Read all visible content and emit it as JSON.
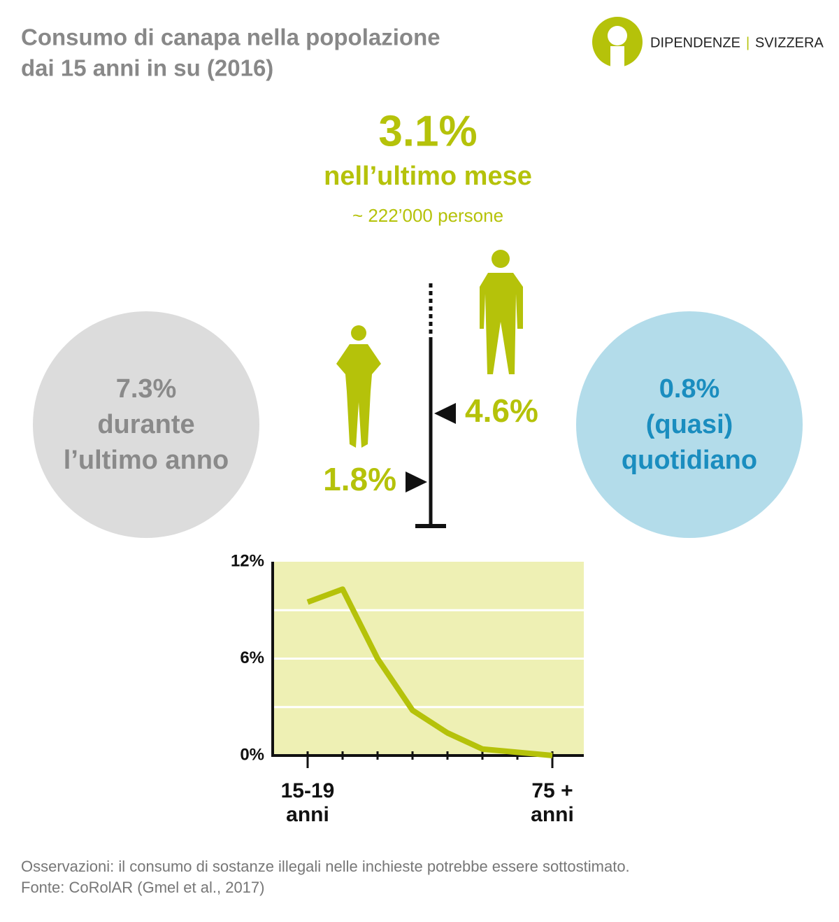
{
  "header": {
    "title_lines": [
      "Consumo di canapa nella popolazione",
      "dai 15 anni in su (2016)"
    ],
    "logo_left": "DIPENDENZE",
    "logo_sep": "|",
    "logo_right": "SVIZZERA"
  },
  "month": {
    "value": "3.1%",
    "label": "nell’ultimo mese",
    "persons": "~ 222’000  persone"
  },
  "gender_scale": {
    "markers": [
      {
        "value": 4.6,
        "label": "4.6%"
      },
      {
        "value": 1.8,
        "label": "1.8%"
      }
    ]
  },
  "year_circle": {
    "lines": [
      "7.3%",
      "durante",
      "l’ultimo anno"
    ]
  },
  "daily_circle": {
    "lines": [
      "0.8%",
      "(quasi)",
      "quotidiano"
    ]
  },
  "chart_data": {
    "type": "line",
    "categories": [
      "15-19\nanni",
      null,
      null,
      null,
      null,
      null,
      null,
      "75 +\nanni"
    ],
    "series": [
      {
        "color": "#b5c20a",
        "values": [
          9.5,
          10.3,
          6.0,
          2.8,
          1.4,
          0.4,
          0.2,
          0.0
        ]
      }
    ],
    "ylim": [
      0,
      12
    ],
    "yticks": [
      {
        "value": 0,
        "label": "0%"
      },
      {
        "value": 6,
        "label": "6%"
      },
      {
        "value": 12,
        "label": "12%"
      }
    ],
    "ygrid": [
      3,
      6,
      9
    ]
  },
  "footer": {
    "note": "Osservazioni: il consumo di sostanze illegali nelle inchieste potrebbe essere sottostimato.",
    "source": "Fonte: CoRolAR (Gmel et al., 2017)"
  }
}
